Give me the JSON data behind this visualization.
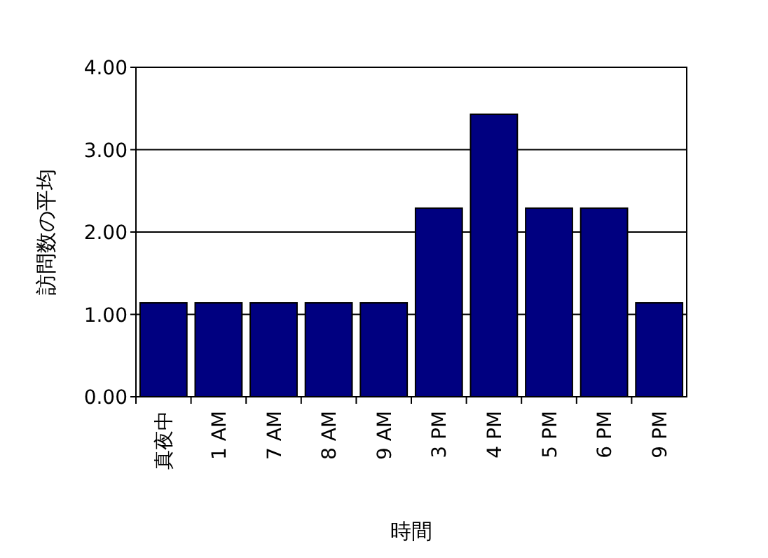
{
  "chart_data": {
    "type": "bar",
    "xlabel": "時間",
    "ylabel": "訪問数の平均",
    "categories": [
      "真夜中",
      "1 AM",
      "7 AM",
      "8 AM",
      "9 AM",
      "3 PM",
      "4 PM",
      "5 PM",
      "6 PM",
      "9 PM"
    ],
    "values": [
      1.14,
      1.14,
      1.14,
      1.14,
      1.14,
      2.29,
      3.43,
      2.29,
      2.29,
      1.14
    ],
    "color": "#000080",
    "ylim": [
      0,
      4
    ],
    "yticks": [
      {
        "value": 0,
        "label": "0.00"
      },
      {
        "value": 1,
        "label": "1.00"
      },
      {
        "value": 2,
        "label": "2.00"
      },
      {
        "value": 3,
        "label": "3.00"
      },
      {
        "value": 4,
        "label": "4.00"
      }
    ],
    "grid": "y"
  }
}
